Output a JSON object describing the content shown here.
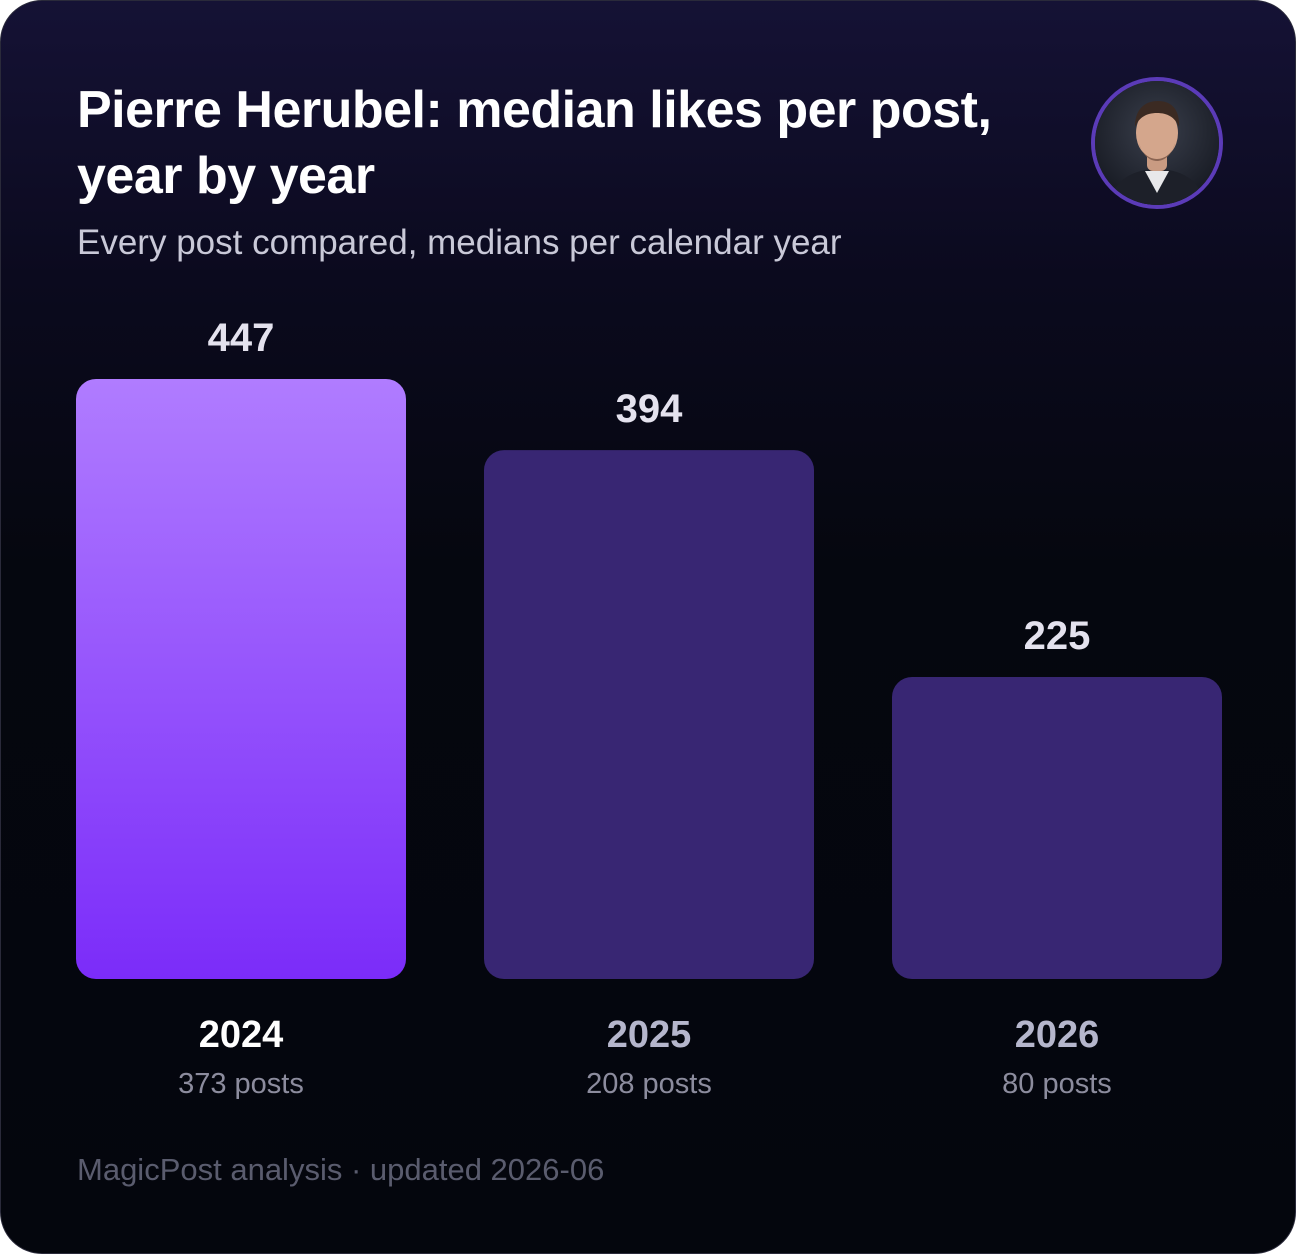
{
  "header": {
    "title": "Pierre Herubel: median likes per post, year by year",
    "subtitle": "Every post compared, medians per calendar year"
  },
  "avatar": {
    "icon": "person-portrait-icon"
  },
  "chart_data": {
    "type": "bar",
    "categories": [
      "2024",
      "2025",
      "2026"
    ],
    "values": [
      447,
      394,
      225
    ],
    "value_labels": [
      "447",
      "394",
      "225"
    ],
    "post_counts": [
      "373 posts",
      "208 posts",
      "80 posts"
    ],
    "ylim": [
      0,
      447
    ],
    "grid": false,
    "highlight_index": 0,
    "colors": {
      "highlight_top": "#b07cff",
      "highlight_bottom": "#7b2cf9",
      "bar": "#382673",
      "highlight_label": "#ffffff",
      "label": "#b5b6cc"
    }
  },
  "footer": {
    "text": "MagicPost analysis · updated 2026-06"
  }
}
